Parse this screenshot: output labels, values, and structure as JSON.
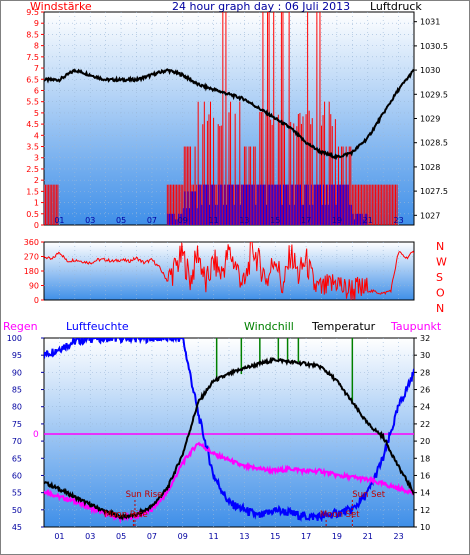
{
  "header": {
    "title": "24 hour graph day : 06 Juli 2013",
    "left_label": "Windstärke",
    "right_label": "Luftdruck"
  },
  "colors": {
    "plot_bg_top": "#ffffff",
    "plot_bg_bottom": "#3f8fe8",
    "wind_red": "#ff0000",
    "wind_blue": "#0000ff",
    "pressure": "#000000",
    "humidity": "#0000ff",
    "temperature": "#000000",
    "dewpoint": "#ff00ff",
    "windchill": "#008000",
    "axis_red": "#ff0000",
    "axis_blue": "#0000a0",
    "x_tick_color": "#0000a0"
  },
  "chart_data": [
    {
      "type": "bar",
      "name": "wind_pressure",
      "left_axis_label": "Windstärke",
      "right_axis_label": "Luftdruck",
      "x_ticks": [
        "01",
        "03",
        "05",
        "07",
        "09",
        "11",
        "13",
        "15",
        "17",
        "19",
        "21",
        "23"
      ],
      "left_ticks": [
        "0",
        "0.5",
        "1",
        "1.5",
        "2",
        "2.5",
        "3",
        "3.5",
        "4",
        "4.5",
        "5",
        "5.5",
        "6",
        "6.5",
        "7",
        "7.5",
        "8",
        "8.5",
        "9",
        "9.5"
      ],
      "left_ylim": [
        0,
        9.5
      ],
      "right_ticks": [
        "1027",
        "1027.5",
        "1028",
        "1028.5",
        "1029",
        "1029.5",
        "1030",
        "1030.5",
        "1031"
      ],
      "right_ylim": [
        1026.8,
        1031.2
      ],
      "wind_gust_hourly_max": [
        1.8,
        0,
        0,
        0,
        0,
        0,
        0,
        0,
        1.8,
        3.5,
        5.5,
        9.5,
        5.5,
        3.5,
        9.5,
        9.5,
        5.5,
        9.5,
        5.5,
        3.5,
        1.8,
        1.8,
        1.8,
        0
      ],
      "wind_avg_hourly": [
        0,
        0,
        0,
        0,
        0,
        0,
        0,
        0,
        0.5,
        1.5,
        1.8,
        1.8,
        1.8,
        1.8,
        1.8,
        1.8,
        1.8,
        1.8,
        1.8,
        1.8,
        0.5,
        0,
        0,
        0
      ],
      "pressure_x": [
        0,
        1,
        2,
        3,
        4,
        5,
        6,
        7,
        8,
        9,
        10,
        11,
        12,
        13,
        14,
        15,
        16,
        17,
        18,
        19,
        20,
        21,
        22,
        23,
        24
      ],
      "pressure_y": [
        1029.8,
        1029.8,
        1030.0,
        1029.9,
        1029.8,
        1029.8,
        1029.8,
        1029.9,
        1030.0,
        1029.9,
        1029.7,
        1029.6,
        1029.5,
        1029.4,
        1029.2,
        1029.0,
        1028.8,
        1028.5,
        1028.3,
        1028.2,
        1028.3,
        1028.6,
        1029.1,
        1029.6,
        1030.0
      ]
    },
    {
      "type": "line",
      "name": "wind_direction",
      "left_ticks": [
        "0",
        "90",
        "180",
        "270",
        "360"
      ],
      "ylim": [
        0,
        360
      ],
      "right_labels": [
        "N",
        "W",
        "S",
        "O",
        "N"
      ],
      "x": [
        0,
        0.5,
        1,
        1.5,
        2,
        2.5,
        3,
        3.5,
        4,
        4.5,
        5,
        5.5,
        6,
        6.5,
        7,
        7.5,
        8,
        8.5,
        9,
        9.5,
        10,
        10.5,
        11,
        11.5,
        12,
        12.5,
        13,
        13.5,
        14,
        14.5,
        15,
        15.5,
        16,
        16.5,
        17,
        17.5,
        18,
        18.5,
        19,
        19.5,
        20,
        20.5,
        21,
        21.5,
        22,
        22.5,
        23,
        23.5,
        24
      ],
      "values": [
        270,
        250,
        300,
        240,
        250,
        240,
        230,
        250,
        250,
        240,
        250,
        240,
        260,
        230,
        250,
        200,
        120,
        200,
        280,
        120,
        300,
        90,
        240,
        160,
        300,
        200,
        80,
        330,
        220,
        120,
        280,
        60,
        300,
        150,
        250,
        90,
        60,
        80,
        120,
        60,
        70,
        60,
        60,
        50,
        40,
        60,
        300,
        260,
        300
      ]
    },
    {
      "type": "line",
      "name": "humidity_temperature",
      "legend": [
        "Regen",
        "Luftfeuchte",
        "Windchill",
        "Temperatur",
        "Taupunkt"
      ],
      "left_ticks": [
        "45",
        "50",
        "55",
        "60",
        "65",
        "70",
        "75",
        "80",
        "85",
        "90",
        "95",
        "100"
      ],
      "left_ylim": [
        45,
        100
      ],
      "right_ticks": [
        "10",
        "12",
        "14",
        "16",
        "18",
        "20",
        "22",
        "24",
        "26",
        "28",
        "30",
        "32"
      ],
      "right_ylim": [
        10,
        32
      ],
      "zero_label": "0",
      "annotations": [
        "Sun Rise",
        "Moon Rise",
        "Sun Set",
        "Moon Set"
      ],
      "x": [
        0,
        1,
        2,
        3,
        4,
        5,
        6,
        7,
        8,
        9,
        10,
        11,
        12,
        13,
        14,
        15,
        16,
        17,
        18,
        19,
        20,
        21,
        22,
        23,
        24
      ],
      "humidity": [
        95,
        97,
        99,
        100,
        100,
        100,
        100,
        100,
        100,
        100,
        78,
        60,
        52,
        50,
        48,
        50,
        49,
        48,
        48,
        49,
        50,
        55,
        65,
        80,
        90
      ],
      "temperature": [
        15.2,
        14.4,
        13.5,
        12.6,
        11.8,
        11.2,
        11.4,
        12.4,
        14.5,
        18.5,
        24.5,
        27.0,
        27.8,
        28.5,
        29.0,
        29.5,
        29.2,
        29.0,
        28.6,
        27.0,
        24.5,
        22.0,
        20.5,
        17.0,
        14.0
      ],
      "dewpoint": [
        14.2,
        13.5,
        13.0,
        12.2,
        11.5,
        11.0,
        11.3,
        12.0,
        14.0,
        17.5,
        19.8,
        18.5,
        17.8,
        17.0,
        16.8,
        16.5,
        16.8,
        16.5,
        16.5,
        16.0,
        15.8,
        15.5,
        15.0,
        14.5,
        14.0
      ],
      "windchill_spikes": [
        {
          "x": 11.2,
          "y": 32
        },
        {
          "x": 12.8,
          "y": 32
        },
        {
          "x": 14.0,
          "y": 32
        },
        {
          "x": 15.2,
          "y": 32
        },
        {
          "x": 15.8,
          "y": 32
        },
        {
          "x": 16.5,
          "y": 32
        },
        {
          "x": 20.0,
          "y": 32
        }
      ]
    }
  ]
}
